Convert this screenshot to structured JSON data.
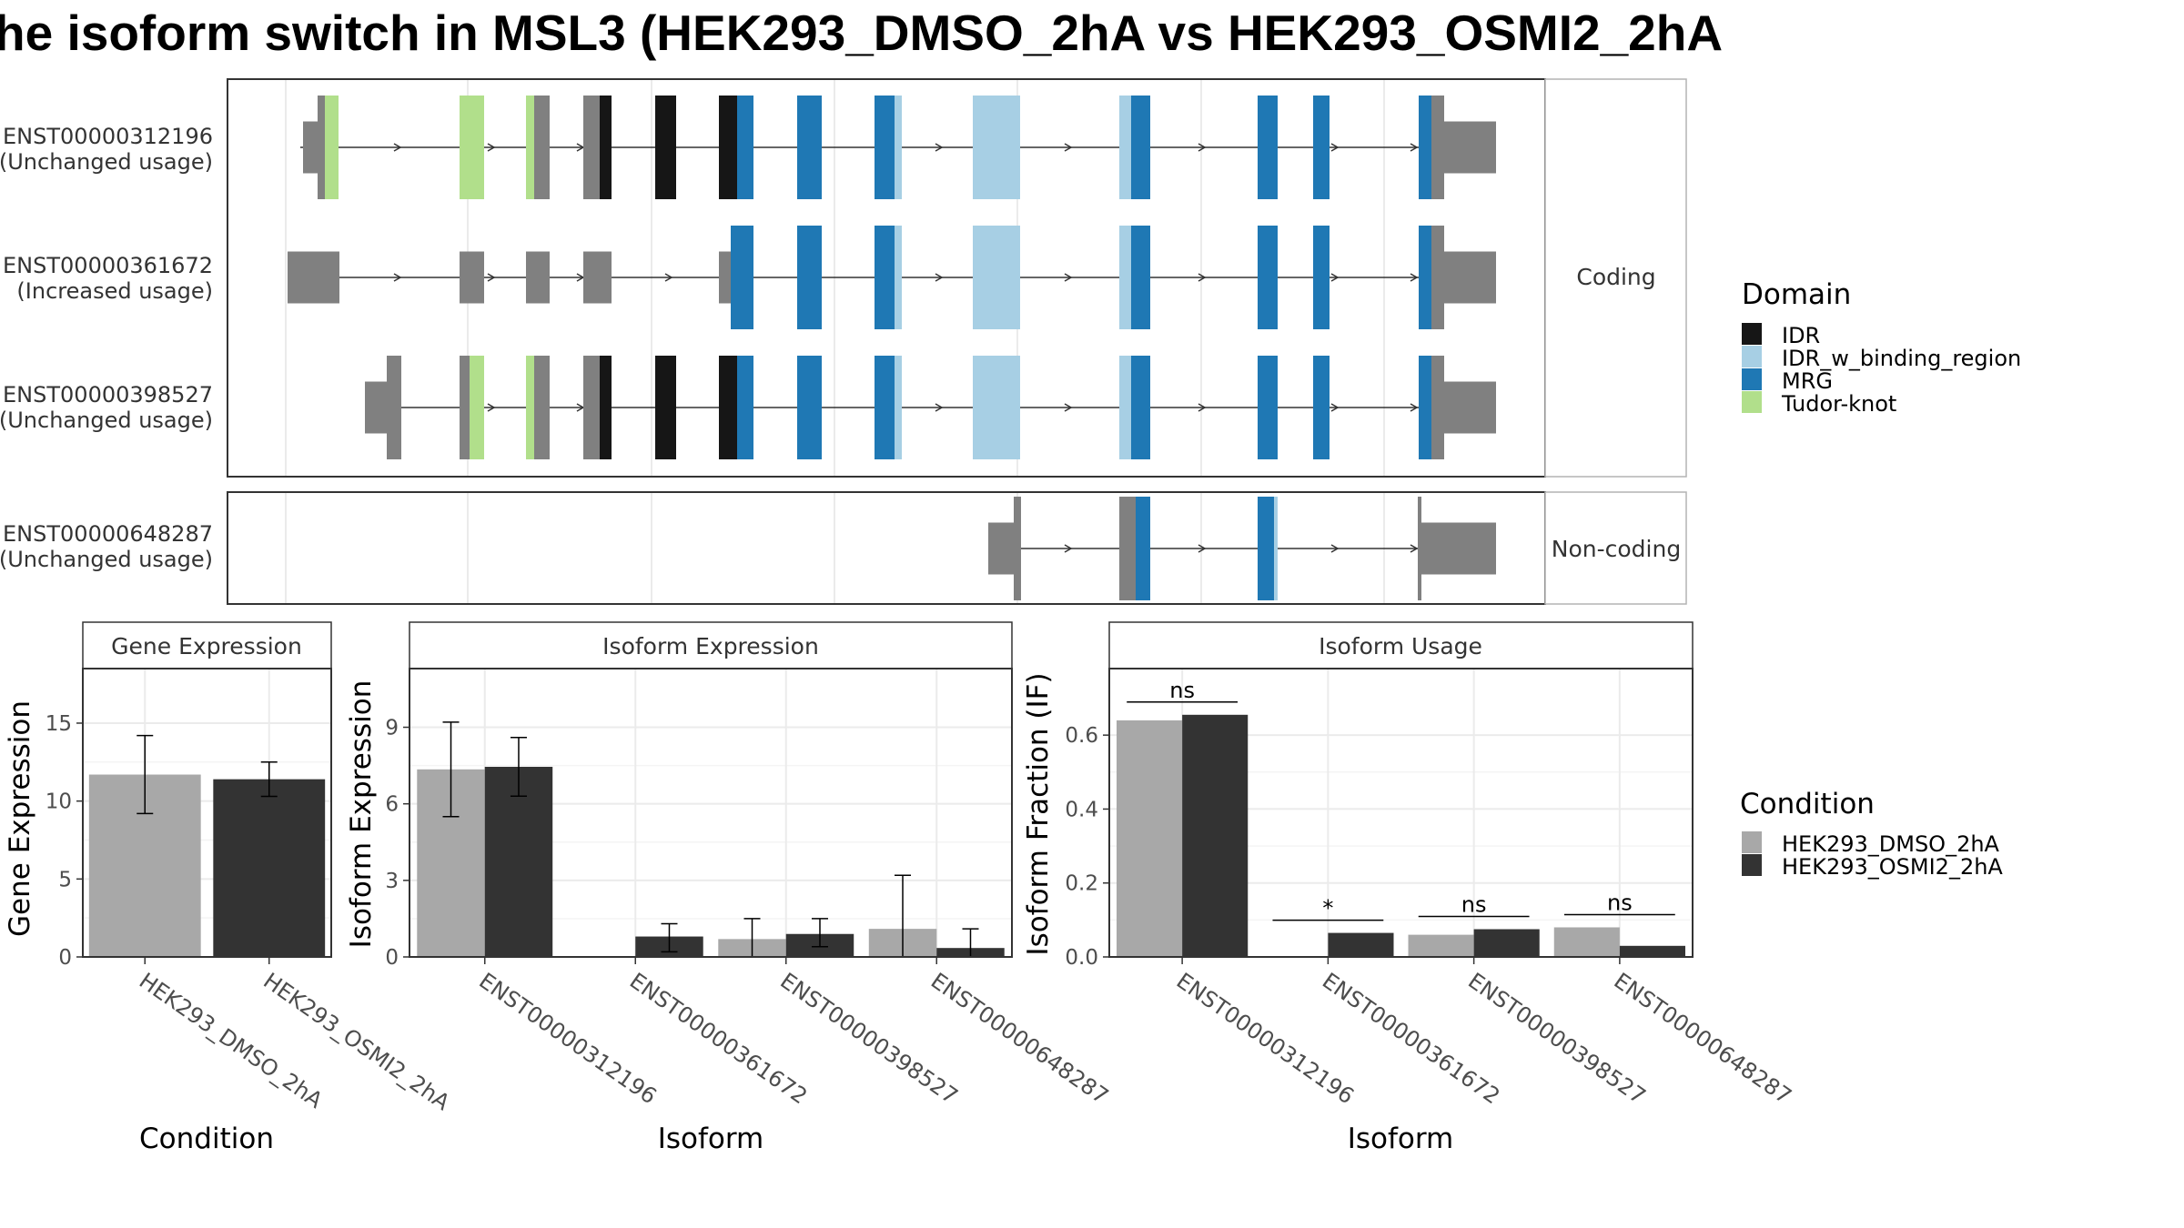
{
  "title": "he isoform switch in MSL3 (HEK293_DMSO_2hA vs HEK293_OSMI2_2hA",
  "colors": {
    "IDR": "#161616",
    "IDR_w_binding_region": "#a7cfe4",
    "MRG": "#1f78b4",
    "Tudor-knot": "#b1df8b",
    "exon": "#808080",
    "dmso": "#a8a8a8",
    "osmi": "#333333"
  },
  "structure": {
    "coding_label": "Coding",
    "noncoding_label": "Non-coding",
    "transcripts": [
      {
        "id": "ENST00000312196",
        "usage": "(Unchanged usage)",
        "group": "coding"
      },
      {
        "id": "ENST00000361672",
        "usage": "(Increased usage)",
        "group": "coding"
      },
      {
        "id": "ENST00000398527",
        "usage": "(Unchanged usage)",
        "group": "coding"
      },
      {
        "id": "ENST00000648287",
        "usage": "(Unchanged usage)",
        "group": "noncoding"
      }
    ]
  },
  "legend_domain": {
    "title": "Domain",
    "items": [
      "IDR",
      "IDR_w_binding_region",
      "MRG",
      "Tudor-knot"
    ]
  },
  "legend_condition": {
    "title": "Condition",
    "items": [
      "HEK293_DMSO_2hA",
      "HEK293_OSMI2_2hA"
    ]
  },
  "chart_data": [
    {
      "type": "bar",
      "title": "Gene Expression",
      "xlabel": "Condition",
      "ylabel": "Gene Expression",
      "ylim": [
        0,
        18.5
      ],
      "yticks": [
        0,
        5,
        10,
        15
      ],
      "categories": [
        "HEK293_DMSO_2hA",
        "HEK293_OSMI2_2hA"
      ],
      "values": [
        11.7,
        11.4
      ],
      "errors": [
        [
          9.2,
          14.2
        ],
        [
          10.3,
          12.5
        ]
      ]
    },
    {
      "type": "bar",
      "title": "Isoform Expression",
      "xlabel": "Isoform",
      "ylabel": "Isoform Expression",
      "ylim": [
        0,
        11.3
      ],
      "yticks": [
        0,
        3,
        6,
        9
      ],
      "categories": [
        "ENST00000312196",
        "ENST00000361672",
        "ENST00000398527",
        "ENST00000648287"
      ],
      "series": [
        {
          "name": "HEK293_DMSO_2hA",
          "values": [
            7.35,
            0.0,
            0.7,
            1.1
          ],
          "errors": [
            [
              5.5,
              9.2
            ],
            [
              0,
              0
            ],
            [
              0,
              1.5
            ],
            [
              0,
              3.2
            ]
          ]
        },
        {
          "name": "HEK293_OSMI2_2hA",
          "values": [
            7.45,
            0.8,
            0.9,
            0.35
          ],
          "errors": [
            [
              6.3,
              8.6
            ],
            [
              0.2,
              1.3
            ],
            [
              0.4,
              1.5
            ],
            [
              0,
              1.1
            ]
          ]
        }
      ]
    },
    {
      "type": "bar",
      "title": "Isoform Usage",
      "xlabel": "Isoform",
      "ylabel": "Isoform Fraction (IF)",
      "ylim": [
        0,
        0.78
      ],
      "yticks": [
        "0.0",
        "0.2",
        "0.4",
        "0.6"
      ],
      "categories": [
        "ENST00000312196",
        "ENST00000361672",
        "ENST00000398527",
        "ENST00000648287"
      ],
      "series": [
        {
          "name": "HEK293_DMSO_2hA",
          "values": [
            0.64,
            0.0,
            0.06,
            0.08
          ]
        },
        {
          "name": "HEK293_OSMI2_2hA",
          "values": [
            0.655,
            0.065,
            0.075,
            0.03
          ]
        }
      ],
      "significance": [
        "ns",
        "*",
        "ns",
        "ns"
      ]
    }
  ]
}
